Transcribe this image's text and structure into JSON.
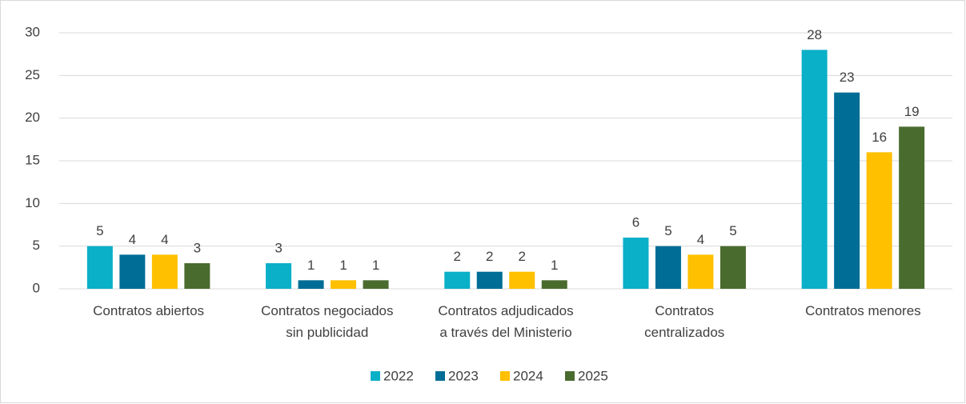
{
  "chart_data": {
    "type": "bar",
    "categories": [
      "Contratos abiertos",
      "Contratos negociados\nsin publicidad",
      "Contratos adjudicados\na través del Ministerio",
      "Contratos\ncentralizados",
      "Contratos menores"
    ],
    "series": [
      {
        "name": "2022",
        "color": "#0ab0c8",
        "values": [
          5,
          3,
          2,
          6,
          28
        ]
      },
      {
        "name": "2023",
        "color": "#006d96",
        "values": [
          4,
          1,
          2,
          5,
          23
        ]
      },
      {
        "name": "2024",
        "color": "#ffc000",
        "values": [
          4,
          1,
          2,
          4,
          16
        ]
      },
      {
        "name": "2025",
        "color": "#4a6b2e",
        "values": [
          3,
          1,
          1,
          5,
          19
        ]
      }
    ],
    "ylim": [
      0,
      30
    ],
    "yticks": [
      0,
      5,
      10,
      15,
      20,
      25,
      30
    ],
    "grid": true,
    "legend": "bottom"
  }
}
